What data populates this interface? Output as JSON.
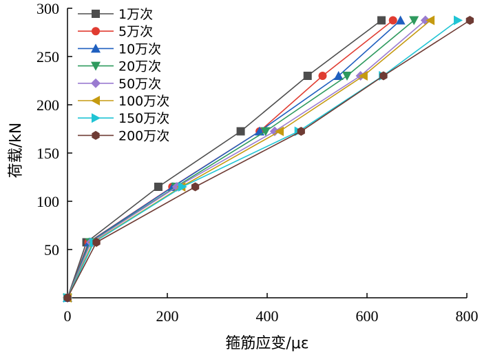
{
  "chart_data": {
    "type": "line",
    "xlabel": "箍筋应变/με",
    "ylabel": "荷载/kN",
    "xlim": [
      0,
      800
    ],
    "ylim": [
      0,
      300
    ],
    "xticks": [
      0,
      200,
      400,
      600,
      800
    ],
    "yticks": [
      50,
      100,
      150,
      200,
      250,
      300
    ],
    "xtick_labels": [
      "0",
      "200",
      "400",
      "600",
      "800"
    ],
    "ytick_labels": [
      "50",
      "100",
      "150",
      "200",
      "250",
      "300"
    ],
    "y": [
      0,
      57.5,
      115,
      172.5,
      230,
      287.5
    ],
    "legend_position": "top-left",
    "series": [
      {
        "name": "1万次",
        "color": "#4d4d4d",
        "marker": "square",
        "x": [
          0,
          38,
          182,
          347,
          481,
          629
        ]
      },
      {
        "name": "5万次",
        "color": "#e03c31",
        "marker": "circle",
        "x": [
          0,
          42,
          210,
          385,
          511,
          652
        ]
      },
      {
        "name": "10万次",
        "color": "#1f5fbf",
        "marker": "triangle-up",
        "x": [
          0,
          43,
          211,
          385,
          543,
          667
        ]
      },
      {
        "name": "20万次",
        "color": "#2e9a5e",
        "marker": "triangle-down",
        "x": [
          0,
          45,
          217,
          397,
          560,
          694
        ]
      },
      {
        "name": "50万次",
        "color": "#9a7bd0",
        "marker": "diamond",
        "x": [
          0,
          47,
          219,
          415,
          587,
          717
        ]
      },
      {
        "name": "100万次",
        "color": "#c59a10",
        "marker": "triangle-left",
        "x": [
          0,
          51,
          228,
          425,
          593,
          727
        ]
      },
      {
        "name": "150万次",
        "color": "#20c4d4",
        "marker": "triangle-right",
        "x": [
          0,
          53,
          230,
          463,
          632,
          782
        ]
      },
      {
        "name": "200万次",
        "color": "#6e3b34",
        "marker": "hexagon",
        "x": [
          0,
          58,
          256,
          468,
          633,
          806
        ]
      }
    ]
  }
}
